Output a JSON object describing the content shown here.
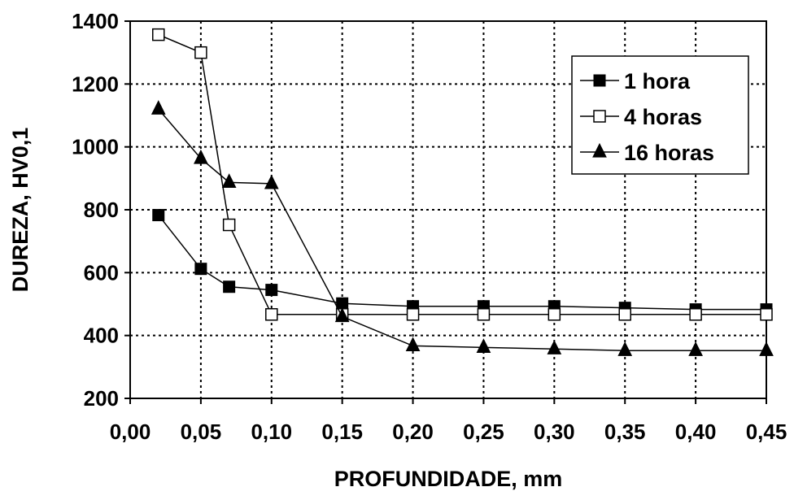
{
  "chart_data": {
    "type": "line",
    "title": "",
    "xlabel": "PROFUNDIDADE, mm",
    "ylabel": "DUREZA, HV0,1",
    "xlim": [
      0.0,
      0.45
    ],
    "ylim": [
      200,
      1400
    ],
    "x_ticks": [
      "0,00",
      "0,05",
      "0,10",
      "0,15",
      "0,20",
      "0,25",
      "0,30",
      "0,35",
      "0,40",
      "0,45"
    ],
    "x_tick_values": [
      0.0,
      0.05,
      0.1,
      0.15,
      0.2,
      0.25,
      0.3,
      0.35,
      0.4,
      0.45
    ],
    "y_ticks": [
      "200",
      "400",
      "600",
      "800",
      "1000",
      "1200",
      "1400"
    ],
    "y_tick_values": [
      200,
      400,
      600,
      800,
      1000,
      1200,
      1400
    ],
    "grid": true,
    "legend_position": "top-right",
    "series": [
      {
        "name": "1 hora",
        "marker": "filled-square",
        "x": [
          0.02,
          0.05,
          0.07,
          0.1,
          0.15,
          0.2,
          0.25,
          0.3,
          0.35,
          0.4,
          0.45
        ],
        "y": [
          783,
          612,
          555,
          545,
          502,
          493,
          493,
          493,
          488,
          483,
          483
        ]
      },
      {
        "name": "4 horas",
        "marker": "open-square",
        "x": [
          0.02,
          0.05,
          0.07,
          0.1,
          0.15,
          0.2,
          0.25,
          0.3,
          0.35,
          0.4,
          0.45
        ],
        "y": [
          1357,
          1300,
          752,
          467,
          467,
          467,
          467,
          467,
          467,
          467,
          467
        ]
      },
      {
        "name": "16 horas",
        "marker": "filled-triangle",
        "x": [
          0.02,
          0.05,
          0.07,
          0.1,
          0.15,
          0.2,
          0.25,
          0.3,
          0.35,
          0.4,
          0.45
        ],
        "y": [
          1120,
          963,
          887,
          883,
          460,
          367,
          362,
          357,
          352,
          352,
          352
        ]
      }
    ],
    "colors": {
      "line": "#000000",
      "grid": "#000000",
      "background": "#ffffff"
    }
  }
}
